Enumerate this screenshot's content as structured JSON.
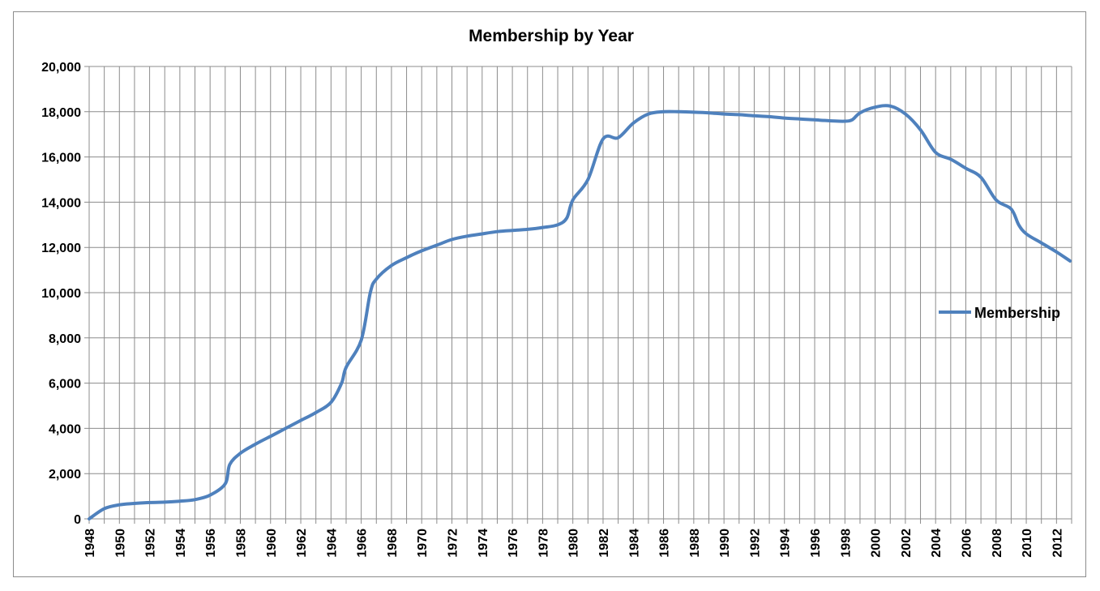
{
  "chart_data": {
    "type": "line",
    "title": "Membership by Year",
    "xlabel": "",
    "ylabel": "",
    "ylim": [
      0,
      20000
    ],
    "xlim": [
      1948,
      2013
    ],
    "y_ticks": [
      "0",
      "2,000",
      "4,000",
      "6,000",
      "8,000",
      "10,000",
      "12,000",
      "14,000",
      "16,000",
      "18,000",
      "20,000"
    ],
    "x_ticks": [
      "1948",
      "1950",
      "1952",
      "1954",
      "1956",
      "1958",
      "1960",
      "1962",
      "1964",
      "1966",
      "1968",
      "1970",
      "1972",
      "1974",
      "1976",
      "1978",
      "1980",
      "1982",
      "1984",
      "1986",
      "1988",
      "1990",
      "1992",
      "1994",
      "1996",
      "1998",
      "2000",
      "2002",
      "2004",
      "2006",
      "2008",
      "2010",
      "2012"
    ],
    "grid": true,
    "legend_position": "right",
    "line_color": "#4f81bd",
    "series": [
      {
        "name": "Membership",
        "x": [
          1948,
          1949,
          1950,
          1951,
          1952,
          1953,
          1954,
          1955,
          1956,
          1957,
          1957.3,
          1958,
          1959,
          1960,
          1961,
          1962,
          1963,
          1964,
          1964.7,
          1965,
          1966,
          1966.6,
          1967,
          1968,
          1969,
          1970,
          1971,
          1972,
          1973,
          1974,
          1975,
          1976,
          1977,
          1978,
          1979,
          1979.6,
          1980,
          1981,
          1982,
          1983,
          1984,
          1985,
          1986,
          1987,
          1988,
          1989,
          1990,
          1991,
          1992,
          1993,
          1994,
          1995,
          1996,
          1997,
          1998,
          1998.5,
          1999,
          2000,
          2001,
          2002,
          2003,
          2004,
          2005,
          2006,
          2007,
          2008,
          2009,
          2009.5,
          2010,
          2011,
          2012,
          2012.9
        ],
        "values": [
          0,
          450,
          620,
          680,
          720,
          740,
          780,
          850,
          1050,
          1550,
          2400,
          2900,
          3300,
          3650,
          4000,
          4350,
          4700,
          5150,
          6000,
          6700,
          7900,
          10000,
          10600,
          11200,
          11550,
          11850,
          12100,
          12350,
          12500,
          12600,
          12700,
          12750,
          12800,
          12880,
          13000,
          13300,
          14100,
          15000,
          16800,
          16850,
          17500,
          17900,
          18000,
          18000,
          17980,
          17950,
          17900,
          17870,
          17820,
          17780,
          17720,
          17680,
          17640,
          17600,
          17580,
          17650,
          17950,
          18200,
          18250,
          17900,
          17200,
          16200,
          15900,
          15500,
          15100,
          14100,
          13700,
          13000,
          12600,
          12200,
          11800,
          11400
        ]
      }
    ]
  }
}
